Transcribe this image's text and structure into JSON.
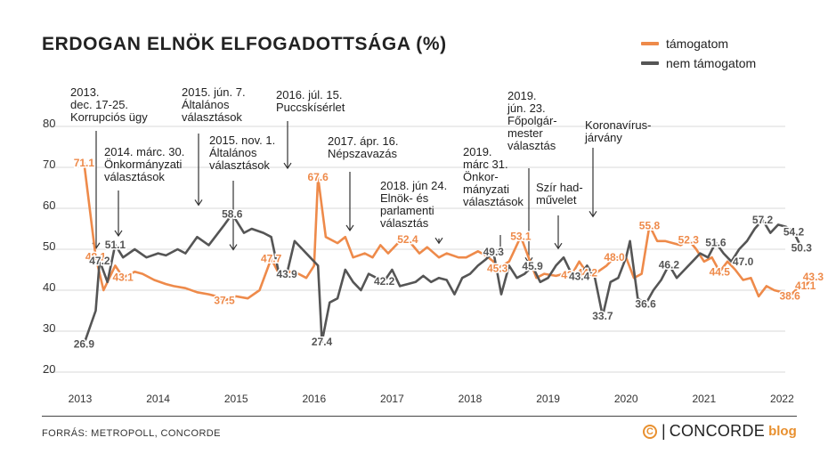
{
  "chart_data": {
    "type": "line",
    "title": "ERDOGAN ELNÖK ELFOGADOTTSÁGA (%)",
    "xlabel": "",
    "ylabel": "",
    "ylim": [
      20,
      80
    ],
    "yticks": [
      "80",
      "70",
      "60",
      "50",
      "40",
      "30",
      "20"
    ],
    "x_tick_labels": [
      "2013",
      "2014",
      "2015",
      "2016",
      "2017",
      "2018",
      "2019",
      "2020",
      "2021",
      "2022"
    ],
    "x_tick_positions": [
      2013.0,
      2014.0,
      2015.0,
      2016.0,
      2017.0,
      2018.0,
      2019.0,
      2020.0,
      2021.0,
      2022.0
    ],
    "grid": "horizontal",
    "legend_position": "top-right",
    "series": [
      {
        "name": "támogatom",
        "color": "#ee8a4a",
        "points": [
          [
            2013.05,
            71.1
          ],
          [
            2013.2,
            48.1
          ],
          [
            2013.3,
            40.0
          ],
          [
            2013.45,
            46.0
          ],
          [
            2013.55,
            43.1
          ],
          [
            2013.7,
            44.5
          ],
          [
            2013.8,
            44.0
          ],
          [
            2013.95,
            42.5
          ],
          [
            2014.1,
            41.5
          ],
          [
            2014.2,
            41.0
          ],
          [
            2014.35,
            40.5
          ],
          [
            2014.5,
            39.5
          ],
          [
            2014.65,
            39.0
          ],
          [
            2014.75,
            38.5
          ],
          [
            2014.85,
            37.5
          ],
          [
            2015.0,
            38.5
          ],
          [
            2015.15,
            38.0
          ],
          [
            2015.3,
            40.0
          ],
          [
            2015.45,
            47.7
          ],
          [
            2015.55,
            44.0
          ],
          [
            2015.7,
            44.5
          ],
          [
            2015.8,
            44.0
          ],
          [
            2015.9,
            43.0
          ],
          [
            2016.0,
            46.0
          ],
          [
            2016.05,
            67.6
          ],
          [
            2016.15,
            53.0
          ],
          [
            2016.3,
            51.5
          ],
          [
            2016.4,
            53.0
          ],
          [
            2016.5,
            48.0
          ],
          [
            2016.65,
            49.0
          ],
          [
            2016.75,
            48.0
          ],
          [
            2016.85,
            51.0
          ],
          [
            2016.95,
            49.0
          ],
          [
            2017.1,
            52.0
          ],
          [
            2017.2,
            52.4
          ],
          [
            2017.35,
            49.0
          ],
          [
            2017.45,
            50.5
          ],
          [
            2017.6,
            48.0
          ],
          [
            2017.7,
            49.0
          ],
          [
            2017.85,
            48.0
          ],
          [
            2017.95,
            48.0
          ],
          [
            2018.1,
            49.5
          ],
          [
            2018.2,
            48.5
          ],
          [
            2018.3,
            47.0
          ],
          [
            2018.35,
            45.3
          ],
          [
            2018.5,
            47.0
          ],
          [
            2018.55,
            49.0
          ],
          [
            2018.65,
            53.1
          ],
          [
            2018.75,
            48.0
          ],
          [
            2018.85,
            43.0
          ],
          [
            2018.95,
            44.0
          ],
          [
            2019.1,
            43.5
          ],
          [
            2019.2,
            44.0
          ],
          [
            2019.3,
            43.7
          ],
          [
            2019.4,
            47.0
          ],
          [
            2019.5,
            44.2
          ],
          [
            2019.6,
            44.0
          ],
          [
            2019.75,
            46.0
          ],
          [
            2019.85,
            48.0
          ],
          [
            2020.0,
            48.0
          ],
          [
            2020.1,
            43.0
          ],
          [
            2020.2,
            44.0
          ],
          [
            2020.3,
            55.8
          ],
          [
            2020.4,
            52.0
          ],
          [
            2020.5,
            52.0
          ],
          [
            2020.6,
            51.5
          ],
          [
            2020.7,
            51.0
          ],
          [
            2020.8,
            52.3
          ],
          [
            2020.9,
            50.0
          ],
          [
            2021.0,
            47.0
          ],
          [
            2021.1,
            48.0
          ],
          [
            2021.2,
            44.5
          ],
          [
            2021.3,
            47.0
          ],
          [
            2021.4,
            45.0
          ],
          [
            2021.5,
            42.5
          ],
          [
            2021.6,
            43.0
          ],
          [
            2021.7,
            38.5
          ],
          [
            2021.8,
            41.0
          ],
          [
            2021.9,
            40.0
          ],
          [
            2022.0,
            39.5
          ],
          [
            2022.1,
            38.6
          ],
          [
            2022.2,
            40.5
          ],
          [
            2022.3,
            41.1
          ],
          [
            2022.4,
            43.3
          ]
        ]
      },
      {
        "name": "nem támogatom",
        "color": "#555555",
        "points": [
          [
            2013.05,
            26.9
          ],
          [
            2013.2,
            35.0
          ],
          [
            2013.25,
            47.2
          ],
          [
            2013.35,
            42.0
          ],
          [
            2013.45,
            51.1
          ],
          [
            2013.55,
            48.0
          ],
          [
            2013.7,
            50.0
          ],
          [
            2013.85,
            48.0
          ],
          [
            2014.0,
            49.0
          ],
          [
            2014.1,
            48.5
          ],
          [
            2014.25,
            50.0
          ],
          [
            2014.35,
            49.0
          ],
          [
            2014.5,
            53.0
          ],
          [
            2014.65,
            51.0
          ],
          [
            2014.75,
            53.5
          ],
          [
            2014.85,
            56.0
          ],
          [
            2014.95,
            58.6
          ],
          [
            2015.1,
            54.0
          ],
          [
            2015.2,
            55.0
          ],
          [
            2015.35,
            54.0
          ],
          [
            2015.45,
            53.0
          ],
          [
            2015.55,
            44.0
          ],
          [
            2015.65,
            43.9
          ],
          [
            2015.75,
            52.0
          ],
          [
            2015.85,
            50.0
          ],
          [
            2015.95,
            48.0
          ],
          [
            2016.05,
            46.0
          ],
          [
            2016.1,
            27.4
          ],
          [
            2016.2,
            37.0
          ],
          [
            2016.3,
            38.0
          ],
          [
            2016.4,
            45.0
          ],
          [
            2016.5,
            42.0
          ],
          [
            2016.6,
            40.0
          ],
          [
            2016.7,
            44.0
          ],
          [
            2016.8,
            43.0
          ],
          [
            2016.9,
            42.2
          ],
          [
            2017.0,
            45.0
          ],
          [
            2017.1,
            41.0
          ],
          [
            2017.2,
            41.5
          ],
          [
            2017.3,
            42.0
          ],
          [
            2017.4,
            43.5
          ],
          [
            2017.5,
            42.0
          ],
          [
            2017.6,
            43.0
          ],
          [
            2017.7,
            42.5
          ],
          [
            2017.8,
            39.0
          ],
          [
            2017.9,
            43.0
          ],
          [
            2018.0,
            44.0
          ],
          [
            2018.1,
            46.0
          ],
          [
            2018.2,
            47.5
          ],
          [
            2018.3,
            49.3
          ],
          [
            2018.4,
            39.0
          ],
          [
            2018.5,
            46.0
          ],
          [
            2018.6,
            43.0
          ],
          [
            2018.7,
            44.0
          ],
          [
            2018.8,
            45.9
          ],
          [
            2018.9,
            42.0
          ],
          [
            2019.0,
            43.0
          ],
          [
            2019.1,
            46.0
          ],
          [
            2019.2,
            48.0
          ],
          [
            2019.3,
            44.0
          ],
          [
            2019.4,
            43.4
          ],
          [
            2019.5,
            46.0
          ],
          [
            2019.6,
            43.0
          ],
          [
            2019.7,
            33.7
          ],
          [
            2019.8,
            42.0
          ],
          [
            2019.9,
            43.0
          ],
          [
            2020.0,
            48.0
          ],
          [
            2020.05,
            52.0
          ],
          [
            2020.15,
            38.0
          ],
          [
            2020.25,
            36.6
          ],
          [
            2020.35,
            40.0
          ],
          [
            2020.45,
            42.5
          ],
          [
            2020.55,
            46.2
          ],
          [
            2020.65,
            43.0
          ],
          [
            2020.75,
            45.0
          ],
          [
            2020.85,
            47.0
          ],
          [
            2020.95,
            49.0
          ],
          [
            2021.05,
            48.0
          ],
          [
            2021.15,
            51.6
          ],
          [
            2021.25,
            49.0
          ],
          [
            2021.35,
            47.0
          ],
          [
            2021.45,
            50.0
          ],
          [
            2021.55,
            52.0
          ],
          [
            2021.65,
            55.0
          ],
          [
            2021.75,
            57.2
          ],
          [
            2021.85,
            54.0
          ],
          [
            2021.95,
            56.0
          ],
          [
            2022.05,
            55.5
          ],
          [
            2022.15,
            54.2
          ],
          [
            2022.25,
            50.3
          ]
        ]
      }
    ],
    "data_labels": [
      {
        "series": 0,
        "x": 2013.05,
        "y": 71.1,
        "text": "71.1"
      },
      {
        "series": 0,
        "x": 2013.2,
        "y": 48.1,
        "text": "48.1"
      },
      {
        "series": 0,
        "x": 2013.55,
        "y": 43.1,
        "text": "43.1"
      },
      {
        "series": 0,
        "x": 2014.85,
        "y": 37.5,
        "text": "37.5"
      },
      {
        "series": 0,
        "x": 2015.45,
        "y": 47.7,
        "text": "47.7"
      },
      {
        "series": 0,
        "x": 2016.05,
        "y": 67.6,
        "text": "67.6"
      },
      {
        "series": 0,
        "x": 2017.2,
        "y": 52.4,
        "text": "52.4"
      },
      {
        "series": 0,
        "x": 2018.35,
        "y": 45.3,
        "text": "45.3"
      },
      {
        "series": 0,
        "x": 2018.65,
        "y": 53.1,
        "text": "53.1"
      },
      {
        "series": 0,
        "x": 2019.3,
        "y": 43.7,
        "text": "43.7"
      },
      {
        "series": 0,
        "x": 2019.5,
        "y": 44.2,
        "text": "44.2"
      },
      {
        "series": 0,
        "x": 2019.85,
        "y": 48.0,
        "text": "48.0"
      },
      {
        "series": 0,
        "x": 2020.3,
        "y": 55.8,
        "text": "55.8"
      },
      {
        "series": 0,
        "x": 2020.8,
        "y": 52.3,
        "text": "52.3"
      },
      {
        "series": 0,
        "x": 2021.2,
        "y": 44.5,
        "text": "44.5"
      },
      {
        "series": 0,
        "x": 2022.1,
        "y": 38.6,
        "text": "38.6"
      },
      {
        "series": 0,
        "x": 2022.3,
        "y": 41.1,
        "text": "41.1"
      },
      {
        "series": 0,
        "x": 2022.4,
        "y": 43.3,
        "text": "43.3"
      },
      {
        "series": 1,
        "x": 2013.05,
        "y": 26.9,
        "text": "26.9"
      },
      {
        "series": 1,
        "x": 2013.25,
        "y": 47.2,
        "text": "47.2"
      },
      {
        "series": 1,
        "x": 2013.45,
        "y": 51.1,
        "text": "51.1"
      },
      {
        "series": 1,
        "x": 2014.95,
        "y": 58.6,
        "text": "58.6"
      },
      {
        "series": 1,
        "x": 2015.65,
        "y": 43.9,
        "text": "43.9"
      },
      {
        "series": 1,
        "x": 2016.1,
        "y": 27.4,
        "text": "27.4"
      },
      {
        "series": 1,
        "x": 2016.9,
        "y": 42.2,
        "text": "42.2"
      },
      {
        "series": 1,
        "x": 2018.3,
        "y": 49.3,
        "text": "49.3"
      },
      {
        "series": 1,
        "x": 2018.8,
        "y": 45.9,
        "text": "45.9"
      },
      {
        "series": 1,
        "x": 2019.4,
        "y": 43.4,
        "text": "43.4"
      },
      {
        "series": 1,
        "x": 2019.7,
        "y": 33.7,
        "text": "33.7"
      },
      {
        "series": 1,
        "x": 2020.25,
        "y": 36.6,
        "text": "36.6"
      },
      {
        "series": 1,
        "x": 2020.55,
        "y": 46.2,
        "text": "46.2"
      },
      {
        "series": 1,
        "x": 2021.15,
        "y": 51.6,
        "text": "51.6"
      },
      {
        "series": 1,
        "x": 2021.5,
        "y": 47.0,
        "text": "47.0"
      },
      {
        "series": 1,
        "x": 2021.75,
        "y": 57.2,
        "text": "57.2"
      },
      {
        "series": 1,
        "x": 2022.15,
        "y": 54.2,
        "text": "54.2"
      },
      {
        "series": 1,
        "x": 2022.25,
        "y": 50.3,
        "text": "50.3"
      }
    ],
    "annotations": [
      {
        "lines": [
          "2013.",
          "dec. 17-25.",
          "Korrupciós ügy"
        ],
        "x": 2013.2,
        "y": 48.1
      },
      {
        "lines": [
          "2014. márc. 30.",
          "Önkormányzati",
          "választások"
        ],
        "x": 2013.48,
        "y": 51.1
      },
      {
        "lines": [
          "2015. jún. 7.",
          "Általános",
          "választások"
        ],
        "x": 2014.95,
        "y": 58.6
      },
      {
        "lines": [
          "2015. nov. 1.",
          "Általános",
          "választások"
        ],
        "x": 2015.6,
        "y": 47.7
      },
      {
        "lines": [
          "2016. júl. 15.",
          "Puccskísérlet"
        ],
        "x": 2016.05,
        "y": 67.6
      },
      {
        "lines": [
          "2017. ápr. 16.",
          "Népszavazás"
        ],
        "x": 2017.2,
        "y": 52.4
      },
      {
        "lines": [
          "2018. jún 24.",
          "Elnök- és",
          "parlamenti",
          "választás"
        ],
        "x": 2018.35,
        "y": 49.3
      },
      {
        "lines": [
          "2019.",
          "márc 31.",
          "Önkor-",
          "mányzati",
          "választások"
        ],
        "x": 2018.95,
        "y": 46.5
      },
      {
        "lines": [
          "2019.",
          "jún. 23.",
          "Főpolgár-",
          "mester",
          "választás"
        ],
        "x": 2019.4,
        "y": 44.5
      },
      {
        "lines": [
          "Szír had-",
          "művelet"
        ],
        "x": 2019.72,
        "y": 48.0
      },
      {
        "lines": [
          "Koronavírus-",
          "járvány"
        ],
        "x": 2020.2,
        "y": 55.8
      }
    ]
  },
  "legend": [
    {
      "label": "támogatom",
      "color": "#ee8a4a"
    },
    {
      "label": "nem támogatom",
      "color": "#555555"
    }
  ],
  "footer": {
    "source": "FORRÁS: METROPOLL, CONCORDE",
    "brand_symbol": "C",
    "brand_separator": "|",
    "brand_name": "CONCORDE",
    "brand_suffix": "blog",
    "brand_color": "#e8902f"
  }
}
